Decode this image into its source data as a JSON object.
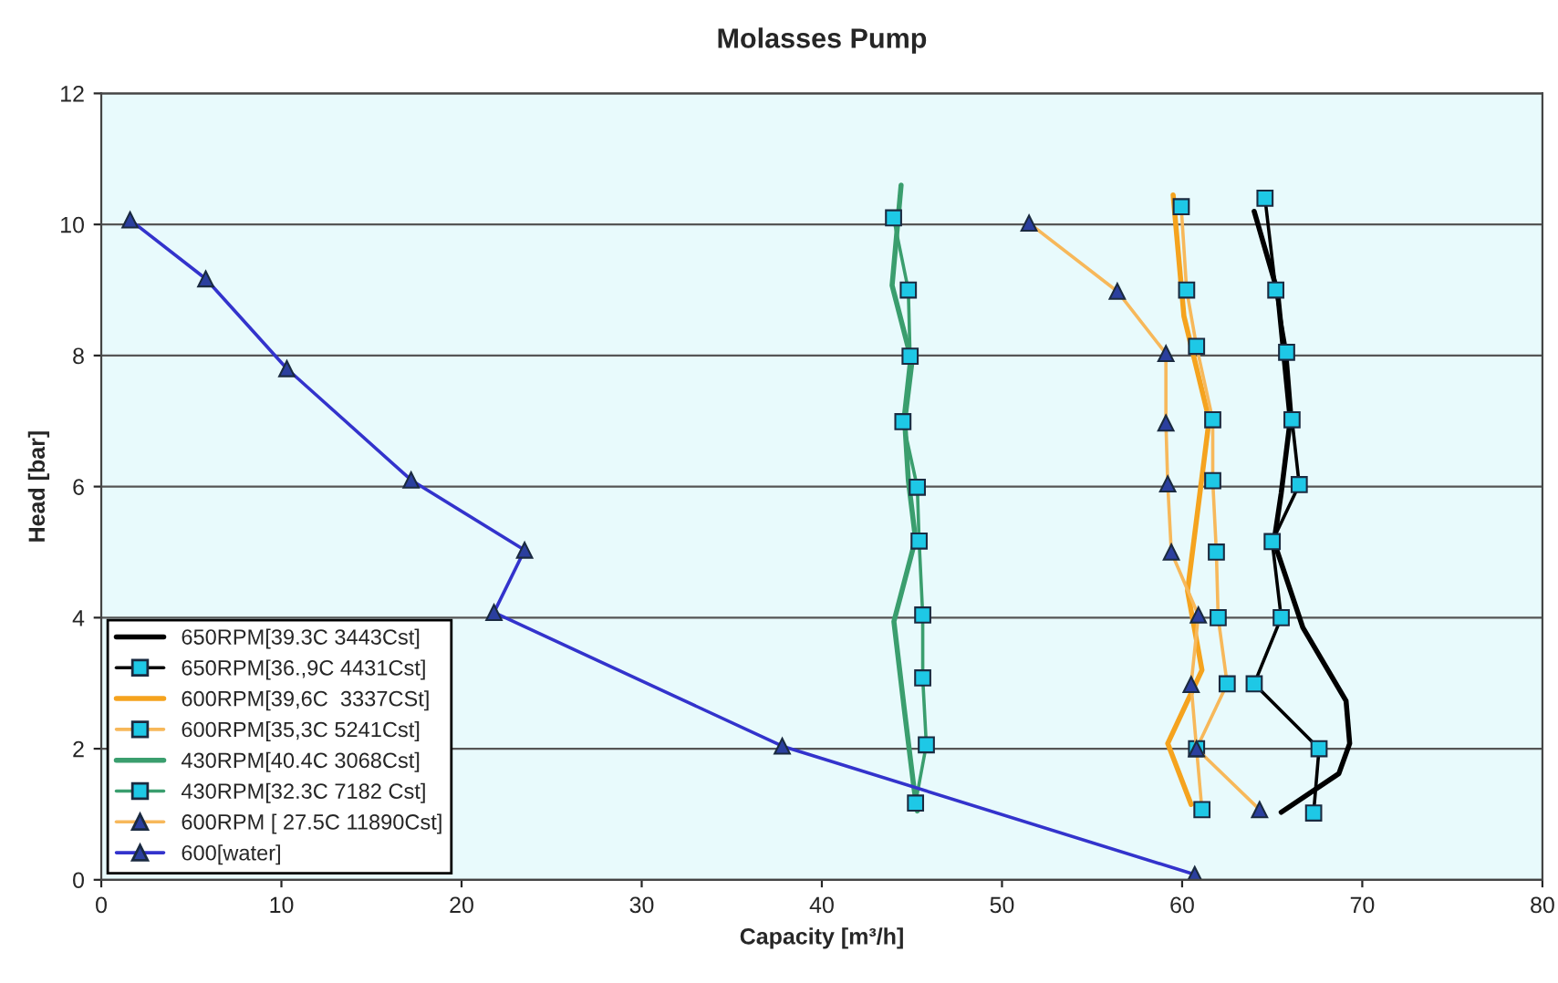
{
  "chart_data": {
    "type": "line",
    "title": "Molasses Pump",
    "xlabel": "Capacity [m³/h]",
    "ylabel": "Head [bar]",
    "xlim": [
      0,
      80
    ],
    "xticks": [
      0,
      10,
      20,
      30,
      40,
      50,
      60,
      70,
      80
    ],
    "ylim": [
      0,
      12
    ],
    "yticks": [
      0,
      2,
      4,
      6,
      8,
      10,
      12
    ],
    "grid": "y",
    "legend": "bottom left",
    "line_style": "solid",
    "series": [
      {
        "name": "650RPM[39.3C 3443Cst]",
        "color": "#000000",
        "marker": "none",
        "x": [
          64.0,
          65.3,
          66.0,
          65.5,
          65.1,
          66.7,
          69.1,
          69.3,
          68.7,
          65.5
        ],
        "values": [
          10.2,
          8.97,
          7.02,
          5.9,
          5.16,
          3.85,
          2.73,
          2.08,
          1.62,
          1.03
        ]
      },
      {
        "name": "650RPM[36.,9C 4431Cst]",
        "color": "#000000",
        "marker": "square",
        "x": [
          64.6,
          65.2,
          65.8,
          66.1,
          66.5,
          65.0,
          65.5,
          64.0,
          67.6,
          67.3
        ],
        "values": [
          10.4,
          9.0,
          8.05,
          7.02,
          6.03,
          5.16,
          4.0,
          2.99,
          2.0,
          1.02
        ]
      },
      {
        "name": "600RPM[39,6C  3337CSt]",
        "color": "#f5a31e",
        "marker": "none",
        "x": [
          59.5,
          60.1,
          61.5,
          60.9,
          60.3,
          61.1,
          59.2,
          60.5
        ],
        "values": [
          10.45,
          8.6,
          7.02,
          5.71,
          4.41,
          3.2,
          2.08,
          1.15
        ]
      },
      {
        "name": "600RPM[35,3C 5241Cst]",
        "color": "#f7b85a",
        "marker": "square",
        "x": [
          59.95,
          60.25,
          60.8,
          61.7,
          61.7,
          61.9,
          62.0,
          62.5,
          60.8,
          61.1
        ],
        "values": [
          10.27,
          9.0,
          8.14,
          7.02,
          6.09,
          5.0,
          4.0,
          2.99,
          2.0,
          1.07
        ]
      },
      {
        "name": "430RPM[40.4C 3068Cst]",
        "color": "#3a9e6e",
        "marker": "none",
        "x": [
          44.4,
          43.9,
          45.0,
          44.6,
          44.8,
          45.2,
          44.0,
          44.6,
          45.1,
          45.3
        ],
        "values": [
          10.6,
          9.07,
          7.9,
          7.0,
          6.1,
          5.2,
          3.94,
          2.55,
          1.43,
          1.05
        ]
      },
      {
        "name": "430RPM[32.3C 7182 Cst]",
        "color": "#3a9e6e",
        "marker": "square",
        "x": [
          43.98,
          44.8,
          44.9,
          44.5,
          45.3,
          45.4,
          45.6,
          45.6,
          45.8,
          45.2
        ],
        "values": [
          10.1,
          9.0,
          7.99,
          6.99,
          5.99,
          5.17,
          4.04,
          3.08,
          2.06,
          1.17
        ]
      },
      {
        "name": "600RPM [ 27.5C 11890Cst]",
        "color": "#f7b85a",
        "marker": "triangle",
        "x": [
          51.5,
          56.4,
          59.1,
          59.1,
          59.2,
          59.4,
          60.9,
          60.5,
          60.8,
          64.3
        ],
        "values": [
          10.02,
          8.98,
          8.03,
          6.97,
          6.04,
          5.0,
          4.04,
          2.98,
          2.0,
          1.07
        ]
      },
      {
        "name": "600[water]",
        "color": "#3333cc",
        "marker": "triangle",
        "x": [
          1.6,
          5.8,
          10.3,
          17.2,
          23.5,
          21.8,
          37.8,
          60.7
        ],
        "values": [
          10.07,
          9.17,
          7.8,
          6.1,
          5.03,
          4.08,
          2.04,
          0.08
        ]
      }
    ]
  }
}
